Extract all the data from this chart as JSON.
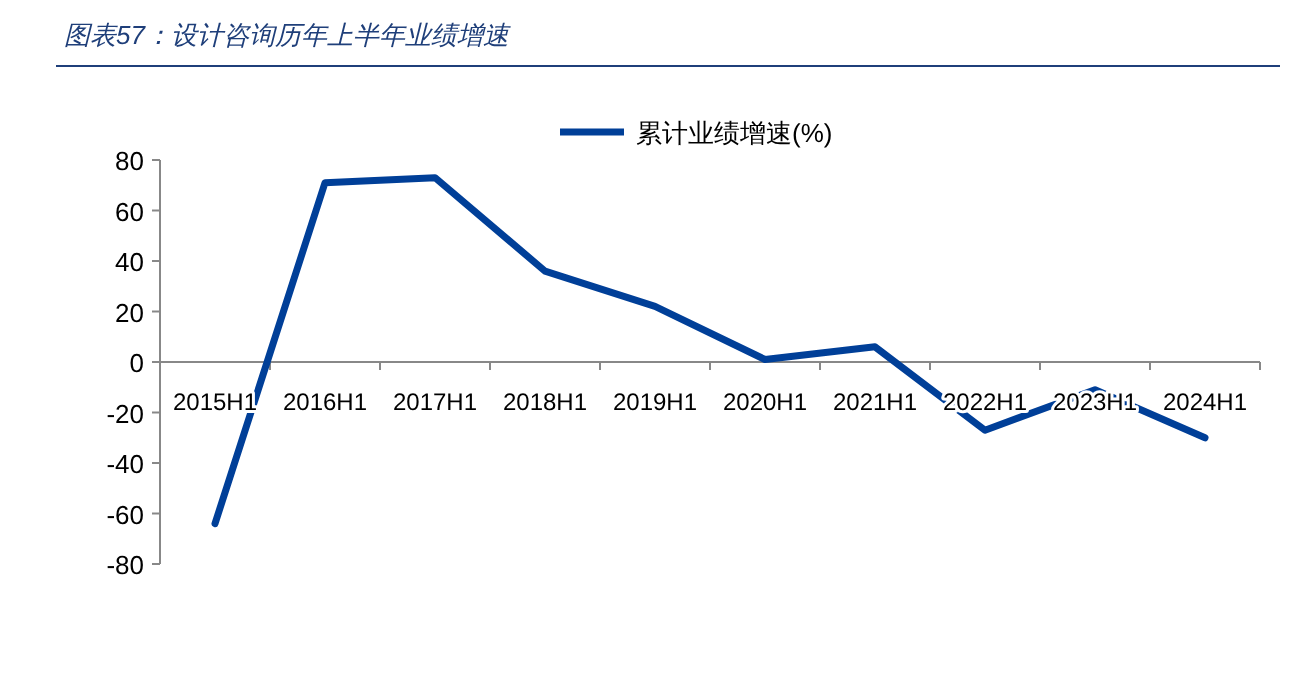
{
  "chart_data": {
    "type": "line",
    "title": "图表57：设计咨询历年上半年业绩增速",
    "categories": [
      "2015H1",
      "2016H1",
      "2017H1",
      "2018H1",
      "2019H1",
      "2020H1",
      "2021H1",
      "2022H1",
      "2023H1",
      "2024H1"
    ],
    "series": [
      {
        "name": "累计业绩增速(%)",
        "color": "#003f98",
        "values": [
          -64,
          71,
          73,
          36,
          22,
          1,
          6,
          -27,
          -11,
          -30
        ]
      }
    ],
    "ylim": [
      -80,
      80
    ],
    "yticks": [
      -80,
      -60,
      -40,
      -20,
      0,
      20,
      40,
      60,
      80
    ],
    "grid": false,
    "legend": "top",
    "marker": "none",
    "line_style": "solid"
  }
}
